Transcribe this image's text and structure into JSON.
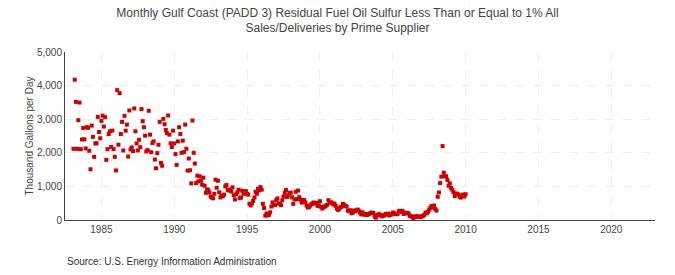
{
  "chart_data": {
    "type": "scatter",
    "title": "Monthly Gulf Coast (PADD 3) Residual Fuel Oil Sulfur Less Than or Equal to 1% All\nSales/Deliveries by Prime Supplier",
    "ylabel": "Thousand Gallons per Day",
    "annotations": [
      "Source: U.S. Energy Information Administration"
    ],
    "color": "#cc0000",
    "marker": "square",
    "grid": true,
    "xlim": [
      1982.5,
      2023.0
    ],
    "xticks": [
      1985,
      1990,
      1995,
      2000,
      2005,
      2010,
      2015,
      2020
    ],
    "ylim": [
      0,
      5000
    ],
    "yticks": [
      0,
      {
        "value": 1000,
        "label": "1,000"
      },
      {
        "value": 2000,
        "label": "2,000"
      },
      {
        "value": 3000,
        "label": "3,000"
      },
      {
        "value": 4000,
        "label": "4,000"
      },
      {
        "value": 5000,
        "label": "5,000"
      }
    ],
    "x": [
      1983.0833333333,
      1983.1666666667,
      1983.25,
      1983.3333333333,
      1983.4166666667,
      1983.5,
      1983.5833333333,
      1983.6666666667,
      1983.75,
      1983.8333333333,
      1983.9166666667,
      1984,
      1984.0833333333,
      1984.1666666667,
      1984.25,
      1984.3333333333,
      1984.4166666667,
      1984.5,
      1984.5833333333,
      1984.6666666667,
      1984.75,
      1984.8333333333,
      1984.9166666667,
      1985,
      1985.0833333333,
      1985.1666666667,
      1985.25,
      1985.3333333333,
      1985.4166666667,
      1985.5,
      1985.5833333333,
      1985.6666666667,
      1985.75,
      1985.8333333333,
      1985.9166666667,
      1986,
      1986.0833333333,
      1986.1666666667,
      1986.25,
      1986.3333333333,
      1986.4166666667,
      1986.5,
      1986.5833333333,
      1986.6666666667,
      1986.75,
      1986.8333333333,
      1986.9166666667,
      1987,
      1987.0833333333,
      1987.1666666667,
      1987.25,
      1987.3333333333,
      1987.4166666667,
      1987.5,
      1987.5833333333,
      1987.6666666667,
      1987.75,
      1987.8333333333,
      1987.9166666667,
      1988,
      1988.0833333333,
      1988.1666666667,
      1988.25,
      1988.3333333333,
      1988.4166666667,
      1988.5,
      1988.5833333333,
      1988.6666666667,
      1988.75,
      1988.8333333333,
      1988.9166666667,
      1989,
      1989.0833333333,
      1989.1666666667,
      1989.25,
      1989.3333333333,
      1989.4166666667,
      1989.5,
      1989.5833333333,
      1989.6666666667,
      1989.75,
      1989.8333333333,
      1989.9166666667,
      1990,
      1990.0833333333,
      1990.1666666667,
      1990.25,
      1990.3333333333,
      1990.4166666667,
      1990.5,
      1990.5833333333,
      1990.6666666667,
      1990.75,
      1990.8333333333,
      1990.9166666667,
      1991,
      1991.0833333333,
      1991.1666666667,
      1991.25,
      1991.3333333333,
      1991.4166666667,
      1991.5,
      1991.5833333333,
      1991.6666666667,
      1991.75,
      1991.8333333333,
      1991.9166666667,
      1992,
      1992.0833333333,
      1992.1666666667,
      1992.25,
      1992.3333333333,
      1992.4166666667,
      1992.5,
      1992.5833333333,
      1992.6666666667,
      1992.75,
      1992.8333333333,
      1992.9166666667,
      1993,
      1993.0833333333,
      1993.1666666667,
      1993.25,
      1993.3333333333,
      1993.4166666667,
      1993.5,
      1993.5833333333,
      1993.6666666667,
      1993.75,
      1993.8333333333,
      1993.9166666667,
      1994,
      1994.0833333333,
      1994.1666666667,
      1994.25,
      1994.3333333333,
      1994.4166666667,
      1994.5,
      1994.5833333333,
      1994.6666666667,
      1994.75,
      1994.8333333333,
      1994.9166666667,
      1995,
      1995.0833333333,
      1995.1666666667,
      1995.25,
      1995.3333333333,
      1995.4166666667,
      1995.5,
      1995.5833333333,
      1995.6666666667,
      1995.75,
      1995.8333333333,
      1995.9166666667,
      1996,
      1996.0833333333,
      1996.1666666667,
      1996.25,
      1996.3333333333,
      1996.4166666667,
      1996.5,
      1996.5833333333,
      1996.6666666667,
      1996.75,
      1996.8333333333,
      1996.9166666667,
      1997,
      1997.0833333333,
      1997.1666666667,
      1997.25,
      1997.3333333333,
      1997.4166666667,
      1997.5,
      1997.5833333333,
      1997.6666666667,
      1997.75,
      1997.8333333333,
      1997.9166666667,
      1998,
      1998.0833333333,
      1998.1666666667,
      1998.25,
      1998.3333333333,
      1998.4166666667,
      1998.5,
      1998.5833333333,
      1998.6666666667,
      1998.75,
      1998.8333333333,
      1998.9166666667,
      1999,
      1999.0833333333,
      1999.1666666667,
      1999.25,
      1999.3333333333,
      1999.4166666667,
      1999.5,
      1999.5833333333,
      1999.6666666667,
      1999.75,
      1999.8333333333,
      1999.9166666667,
      2000,
      2000.0833333333,
      2000.1666666667,
      2000.25,
      2000.3333333333,
      2000.4166666667,
      2000.5,
      2000.5833333333,
      2000.6666666667,
      2000.75,
      2000.8333333333,
      2000.9166666667,
      2001,
      2001.0833333333,
      2001.1666666667,
      2001.25,
      2001.3333333333,
      2001.4166666667,
      2001.5,
      2001.5833333333,
      2001.6666666667,
      2001.75,
      2001.8333333333,
      2001.9166666667,
      2002,
      2002.0833333333,
      2002.1666666667,
      2002.25,
      2002.3333333333,
      2002.4166666667,
      2002.5,
      2002.5833333333,
      2002.6666666667,
      2002.75,
      2002.8333333333,
      2002.9166666667,
      2003,
      2003.0833333333,
      2003.1666666667,
      2003.25,
      2003.3333333333,
      2003.4166666667,
      2003.5,
      2003.5833333333,
      2003.6666666667,
      2003.75,
      2003.8333333333,
      2003.9166666667,
      2004,
      2004.0833333333,
      2004.1666666667,
      2004.25,
      2004.3333333333,
      2004.4166666667,
      2004.5,
      2004.5833333333,
      2004.6666666667,
      2004.75,
      2004.8333333333,
      2004.9166666667,
      2005,
      2005.0833333333,
      2005.1666666667,
      2005.25,
      2005.3333333333,
      2005.4166666667,
      2005.5,
      2005.5833333333,
      2005.6666666667,
      2005.75,
      2005.8333333333,
      2005.9166666667,
      2006,
      2006.0833333333,
      2006.1666666667,
      2006.25,
      2006.3333333333,
      2006.4166666667,
      2006.5,
      2006.5833333333,
      2006.6666666667,
      2006.75,
      2006.8333333333,
      2006.9166666667,
      2007,
      2007.0833333333,
      2007.1666666667,
      2007.25,
      2007.3333333333,
      2007.4166666667,
      2007.5,
      2007.5833333333,
      2007.6666666667,
      2007.75,
      2007.8333333333,
      2007.9166666667,
      2008,
      2008.0833333333,
      2008.1666666667,
      2008.25,
      2008.3333333333,
      2008.4166666667,
      2008.5,
      2008.5833333333,
      2008.6666666667,
      2008.75,
      2008.8333333333,
      2008.9166666667,
      2009,
      2009.0833333333,
      2009.1666666667,
      2009.25,
      2009.3333333333,
      2009.4166666667,
      2009.5,
      2009.5833333333,
      2009.6666666667,
      2009.75,
      2009.8333333333,
      2009.9166666667,
      2010
    ],
    "values": [
      2119,
      4175,
      3516,
      2118,
      2970,
      3495,
      2108,
      2396,
      2735,
      2403,
      2130,
      2765,
      2742,
      2060,
      1510,
      2810,
      2476,
      1879,
      2278,
      2282,
      3068,
      2620,
      2432,
      2950,
      3105,
      2780,
      3060,
      1790,
      2108,
      2558,
      2640,
      2175,
      2660,
      2110,
      1880,
      1475,
      3865,
      2240,
      3775,
      2560,
      2920,
      2070,
      3100,
      2658,
      2840,
      1888,
      3260,
      2100,
      2160,
      2050,
      3320,
      2640,
      2280,
      2070,
      2388,
      2168,
      3300,
      2940,
      2760,
      2510,
      2040,
      2080,
      3250,
      2540,
      2020,
      2290,
      2340,
      1800,
      1540,
      1990,
      2240,
      2920,
      1700,
      1615,
      3010,
      2850,
      2680,
      2580,
      3110,
      2540,
      2280,
      2170,
      2660,
      2280,
      1960,
      1640,
      2340,
      2760,
      2560,
      2000,
      2360,
      2020,
      2840,
      2120,
      1470,
      1830,
      1480,
      1090,
      2960,
      2000,
      1680,
      1100,
      1320,
      1150,
      1300,
      1170,
      1050,
      1260,
      1020,
      808,
      912,
      890,
      820,
      698,
      670,
      645,
      780,
      1200,
      960,
      1168,
      824,
      672,
      726,
      706,
      756,
      1000,
      1040,
      900,
      880,
      904,
      850,
      972,
      736,
      612,
      768,
      824,
      900,
      648,
      672,
      870,
      780,
      806,
      860,
      774,
      752,
      484,
      434,
      492,
      572,
      670,
      840,
      780,
      930,
      880,
      980,
      902,
      480,
      358,
      130,
      194,
      136,
      158,
      230,
      400,
      524,
      440,
      448,
      592,
      642,
      488,
      486,
      440,
      590,
      698,
      810,
      892,
      686,
      740,
      808,
      812,
      676,
      478,
      610,
      840,
      622,
      876,
      680,
      600,
      520,
      600,
      590,
      524,
      430,
      370,
      390,
      430,
      470,
      496,
      520,
      490,
      510,
      420,
      440,
      560,
      390,
      340,
      380,
      400,
      430,
      450,
      590,
      510,
      530,
      500,
      460,
      490,
      420,
      340,
      300,
      340,
      380,
      400,
      480,
      440,
      420,
      400,
      280,
      270,
      290,
      200,
      220,
      280,
      260,
      290,
      310,
      280,
      220,
      170,
      230,
      160,
      180,
      155,
      150,
      175,
      190,
      210,
      220,
      210,
      110,
      70,
      140,
      165,
      170,
      140,
      110,
      130,
      135,
      180,
      165,
      190,
      135,
      155,
      168,
      224,
      198,
      185,
      170,
      184,
      260,
      275,
      240,
      270,
      180,
      200,
      218,
      208,
      192,
      124,
      113,
      95,
      58,
      98,
      112,
      96,
      108,
      90,
      86,
      110,
      125,
      152,
      222,
      198,
      244,
      310,
      370,
      414,
      372,
      430,
      330,
      280,
      690,
      820,
      1100,
      1290,
      2200,
      1410,
      1300,
      1298,
      1188,
      1020,
      1090,
      955,
      900,
      830,
      712,
      782,
      782,
      758,
      696,
      668,
      728,
      758,
      698,
      766
    ]
  }
}
